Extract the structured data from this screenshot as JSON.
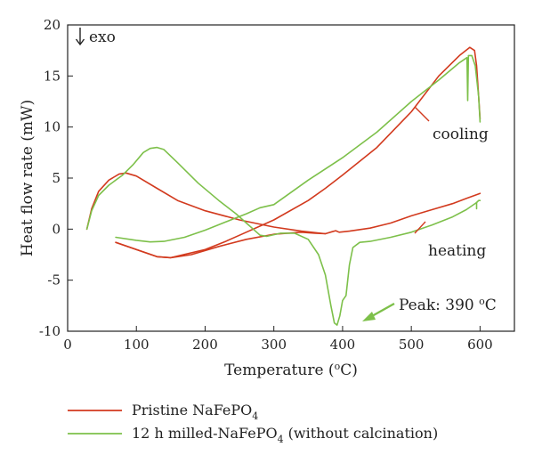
{
  "chart_data": {
    "type": "line",
    "xlabel_main": "Temperature (",
    "xlabel_sup": "o",
    "xlabel_end": "C)",
    "ylabel": "Heat flow rate (mW)",
    "xlim": [
      0,
      650
    ],
    "ylim": [
      -10,
      20
    ],
    "x_ticks": [
      "0",
      "100",
      "200",
      "300",
      "400",
      "500",
      "600"
    ],
    "y_ticks": [
      "-10",
      "-5",
      "0",
      "5",
      "10",
      "15",
      "20"
    ],
    "grid": false,
    "legend_position": "bottom-left, below plot",
    "annotations": {
      "exo": "exo",
      "cooling": "cooling",
      "heating": "heating",
      "peak_main": "Peak: 390 ",
      "peak_sup": "o",
      "peak_end": "C"
    },
    "series": [
      {
        "name_main": "Pristine NaFePO",
        "name_sub": "4",
        "name_end": "",
        "color": "#d23a1e",
        "heating": [
          [
            70,
            -1.3
          ],
          [
            100,
            -2.0
          ],
          [
            130,
            -2.7
          ],
          [
            150,
            -2.8
          ],
          [
            180,
            -2.5
          ],
          [
            220,
            -1.7
          ],
          [
            260,
            -1.0
          ],
          [
            300,
            -0.5
          ],
          [
            340,
            -0.3
          ],
          [
            360,
            -0.4
          ],
          [
            375,
            -0.45
          ],
          [
            385,
            -0.25
          ],
          [
            390,
            -0.15
          ],
          [
            395,
            -0.3
          ],
          [
            410,
            -0.2
          ],
          [
            440,
            0.1
          ],
          [
            470,
            0.6
          ],
          [
            500,
            1.3
          ],
          [
            530,
            1.9
          ],
          [
            560,
            2.5
          ],
          [
            580,
            3.0
          ],
          [
            600,
            3.5
          ]
        ],
        "cooling": [
          [
            600,
            10.8
          ],
          [
            598,
            13
          ],
          [
            595,
            16
          ],
          [
            592,
            17.5
          ],
          [
            585,
            17.8
          ],
          [
            570,
            17.0
          ],
          [
            540,
            15.0
          ],
          [
            500,
            11.5
          ],
          [
            450,
            8.0
          ],
          [
            400,
            5.3
          ],
          [
            375,
            4.0
          ],
          [
            350,
            2.8
          ],
          [
            300,
            0.9
          ],
          [
            250,
            -0.6
          ],
          [
            230,
            -1.2
          ],
          [
            200,
            -2.0
          ],
          [
            150,
            -2.8
          ],
          [
            130,
            -2.7
          ],
          [
            100,
            -2.0
          ],
          [
            70,
            -1.3
          ]
        ],
        "warmup": [
          [
            28,
            0
          ],
          [
            35,
            2
          ],
          [
            45,
            3.7
          ],
          [
            60,
            4.8
          ],
          [
            75,
            5.4
          ],
          [
            85,
            5.5
          ],
          [
            100,
            5.2
          ],
          [
            130,
            4.0
          ],
          [
            160,
            2.8
          ],
          [
            200,
            1.8
          ],
          [
            250,
            0.9
          ],
          [
            300,
            0.2
          ],
          [
            340,
            -0.2
          ],
          [
            375,
            -0.45
          ]
        ]
      },
      {
        "name_main": "12 h milled-NaFePO",
        "name_sub": "4",
        "name_end": " (without calcination)",
        "color": "#7dc04a",
        "heating": [
          [
            70,
            -0.8
          ],
          [
            100,
            -1.1
          ],
          [
            120,
            -1.25
          ],
          [
            140,
            -1.2
          ],
          [
            170,
            -0.8
          ],
          [
            200,
            -0.1
          ],
          [
            230,
            0.7
          ],
          [
            260,
            1.5
          ],
          [
            280,
            2.1
          ]
        ],
        "warmup": [
          [
            28,
            0
          ],
          [
            35,
            1.8
          ],
          [
            45,
            3.3
          ],
          [
            60,
            4.3
          ],
          [
            80,
            5.3
          ],
          [
            95,
            6.3
          ],
          [
            110,
            7.5
          ],
          [
            120,
            7.9
          ],
          [
            130,
            8.0
          ],
          [
            140,
            7.8
          ],
          [
            160,
            6.5
          ],
          [
            190,
            4.5
          ],
          [
            220,
            2.8
          ],
          [
            245,
            1.5
          ],
          [
            260,
            0.6
          ],
          [
            270,
            0.0
          ],
          [
            280,
            -0.6
          ],
          [
            290,
            -0.7
          ],
          [
            310,
            -0.4
          ],
          [
            330,
            -0.4
          ],
          [
            350,
            -1.0
          ],
          [
            365,
            -2.5
          ],
          [
            375,
            -4.5
          ],
          [
            383,
            -7.5
          ],
          [
            388,
            -9.2
          ],
          [
            392,
            -9.4
          ],
          [
            396,
            -8.5
          ],
          [
            400,
            -7.0
          ],
          [
            405,
            -6.5
          ],
          [
            410,
            -3.5
          ],
          [
            415,
            -1.8
          ],
          [
            425,
            -1.3
          ],
          [
            440,
            -1.2
          ],
          [
            470,
            -0.8
          ],
          [
            500,
            -0.3
          ],
          [
            530,
            0.4
          ],
          [
            560,
            1.2
          ],
          [
            580,
            1.9
          ],
          [
            595,
            2.6
          ]
        ],
        "cooling": [
          [
            595,
            2.6
          ],
          [
            595,
            2.0
          ],
          [
            595,
            2.6
          ],
          [
            598,
            2.8
          ],
          [
            600,
            2.8
          ]
        ],
        "top": [
          [
            600,
            10.5
          ],
          [
            598,
            13
          ],
          [
            593,
            16
          ],
          [
            588,
            17.0
          ],
          [
            583,
            17.0
          ],
          [
            582,
            12.6
          ],
          [
            581,
            16.8
          ],
          [
            570,
            16.3
          ],
          [
            540,
            14.6
          ],
          [
            500,
            12.5
          ],
          [
            450,
            9.5
          ],
          [
            400,
            7.0
          ],
          [
            350,
            4.8
          ],
          [
            300,
            2.4
          ],
          [
            280,
            2.1
          ]
        ]
      }
    ]
  }
}
